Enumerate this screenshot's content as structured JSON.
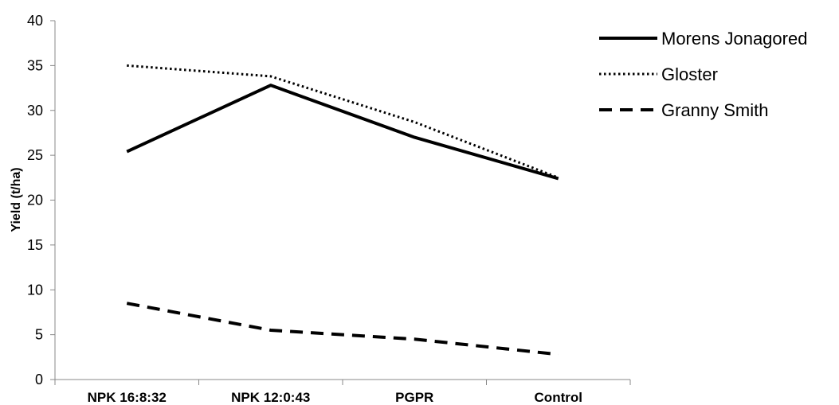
{
  "chart_data": {
    "type": "line",
    "title": "",
    "xlabel": "",
    "ylabel": "Yield  (t/ha)",
    "ylim": [
      0,
      40
    ],
    "yticks": [
      0,
      5,
      10,
      15,
      20,
      25,
      30,
      35,
      40
    ],
    "grid": false,
    "legend_position": "top-right",
    "categories": [
      "NPK 16:8:32",
      "NPK 12:0:43",
      "PGPR",
      "Control"
    ],
    "series": [
      {
        "name": "Morens Jonagored",
        "style": "solid",
        "color": "#000000",
        "values": [
          25.4,
          32.8,
          27.0,
          22.4
        ]
      },
      {
        "name": "Gloster",
        "style": "dotted",
        "color": "#000000",
        "values": [
          35.0,
          33.8,
          28.7,
          22.5
        ]
      },
      {
        "name": "Granny Smith",
        "style": "dashed",
        "color": "#000000",
        "values": [
          8.5,
          5.5,
          4.5,
          2.8
        ]
      }
    ]
  }
}
